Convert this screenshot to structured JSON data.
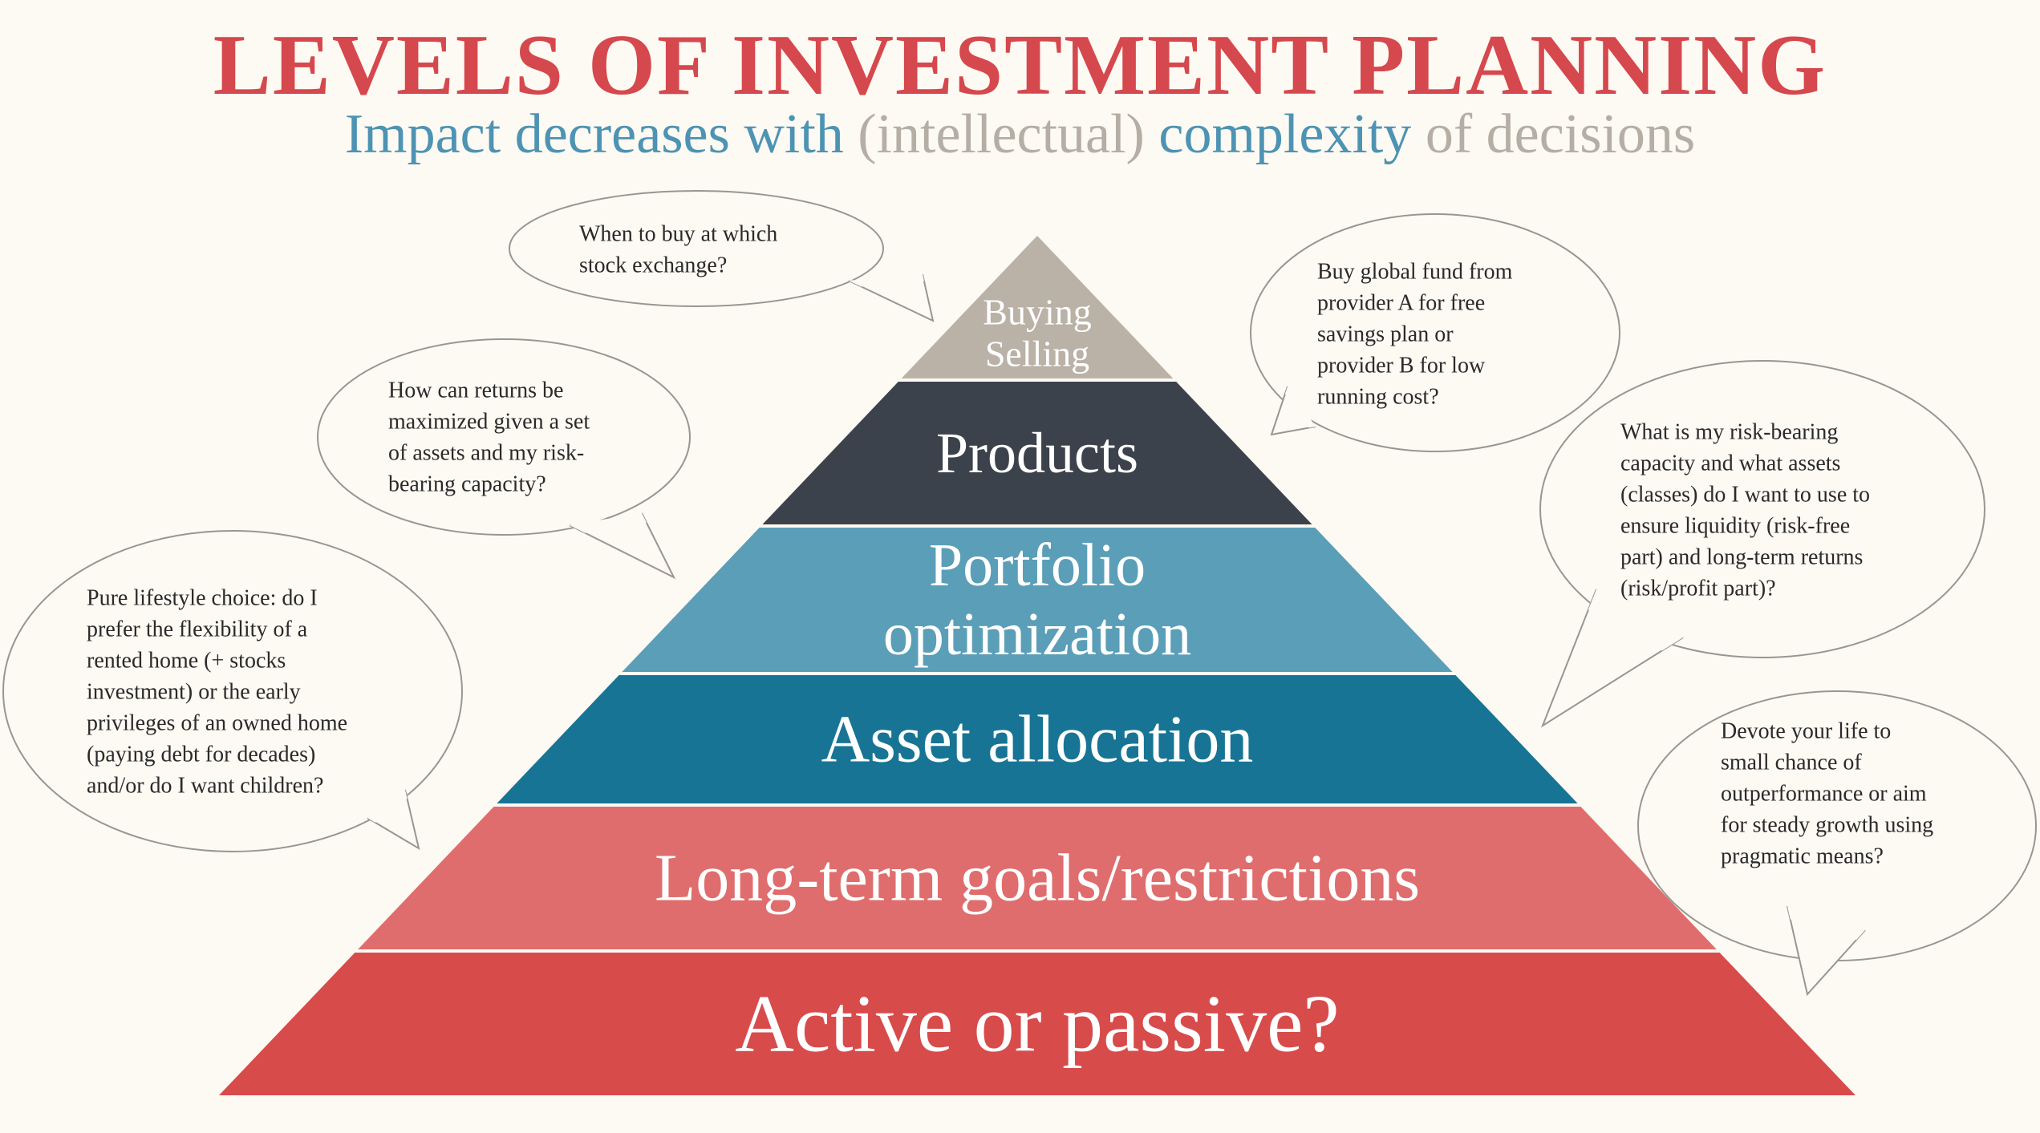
{
  "title": "LEVELS OF INVESTMENT PLANNING",
  "subtitle": {
    "part1": "Impact decreases with",
    "part2": "(intellectual)",
    "part3": "complexity",
    "part4": "of decisions",
    "color_blue": "#4d93b3",
    "color_grey": "#b5aea5"
  },
  "levels": [
    {
      "lines": [
        "Buying",
        "Selling"
      ],
      "color": "#bab1a7"
    },
    {
      "lines": [
        "Products"
      ],
      "color": "#3c424b"
    },
    {
      "lines": [
        "Portfolio",
        "optimization"
      ],
      "color": "#5b9eb8"
    },
    {
      "lines": [
        "Asset allocation"
      ],
      "color": "#187494"
    },
    {
      "lines": [
        "Long-term goals/restrictions"
      ],
      "color": "#e06d6d"
    },
    {
      "lines": [
        "Active or passive?"
      ],
      "color": "#d84b4b"
    }
  ],
  "bubbles": [
    {
      "lines": [
        "When to buy at which",
        "stock exchange?"
      ]
    },
    {
      "lines": [
        "How can returns be",
        "maximized given a set",
        "of assets and my risk-",
        "bearing capacity?"
      ]
    },
    {
      "lines": [
        "Pure lifestyle choice: do I",
        "prefer the flexibility of a",
        "rented home (+ stocks",
        "investment) or the early",
        "privileges of an owned home",
        "(paying debt for decades)",
        "and/or do I want children?"
      ]
    },
    {
      "lines": [
        "Buy global fund from",
        "provider A for free",
        "savings plan or",
        "provider B for low",
        "running cost?"
      ]
    },
    {
      "lines": [
        "What is my risk-bearing",
        "capacity and what assets",
        "(classes) do I want to use to",
        "ensure liquidity (risk-free",
        "part) and long-term returns",
        "(risk/profit part)?"
      ]
    },
    {
      "lines": [
        "Devote your life to",
        "small chance of",
        "outperformance or aim",
        "for steady growth using",
        "pragmatic means?"
      ]
    }
  ]
}
